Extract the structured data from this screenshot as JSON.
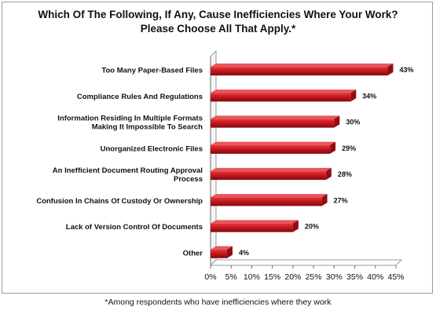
{
  "chart_data": {
    "type": "bar",
    "orientation": "horizontal",
    "title": "Which Of The Following, If Any, Cause Inefficiencies Where Your Work? Please Choose All That Apply.*",
    "categories": [
      [
        "Too Many Paper-Based Files"
      ],
      [
        "Compliance Rules And Regulations"
      ],
      [
        "Information Residing In Multiple Formats",
        "Making It Impossible To Search"
      ],
      [
        "Unorganized Electronic Files"
      ],
      [
        "An Inefficient Document Routing Approval",
        "Process"
      ],
      [
        "Confusion In Chains Of Custody Or Ownership"
      ],
      [
        "Lack of Version Control Of Documents"
      ],
      [
        "Other"
      ]
    ],
    "values": [
      43,
      34,
      30,
      29,
      28,
      27,
      20,
      4
    ],
    "value_labels": [
      "43%",
      "34%",
      "30%",
      "29%",
      "28%",
      "27%",
      "20%",
      "4%"
    ],
    "xlim": [
      0,
      45
    ],
    "xticks": [
      "0%",
      "5%",
      "10%",
      "15%",
      "20%",
      "25%",
      "30%",
      "35%",
      "40%",
      "45%"
    ],
    "bar_color": "#c8161d",
    "grid": false,
    "footnote": "*Among respondents who have inefficiencies where they work"
  }
}
